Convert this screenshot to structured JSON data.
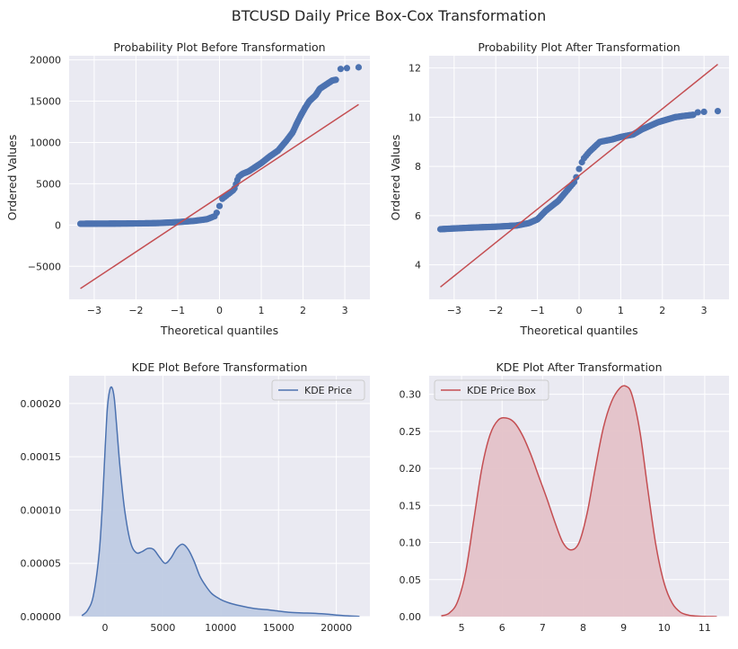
{
  "figure": {
    "title": "BTCUSD Daily Price Box-Cox Transformation"
  },
  "colors": {
    "background": "#eaeaf2",
    "grid": "#ffffff",
    "blue": "#4c72b0",
    "red": "#c44e52",
    "blue_fill": "#bfcbe3",
    "red_fill": "#e4c2c8"
  },
  "chart_data": [
    {
      "id": "prob-before",
      "type": "scatter",
      "title": "Probability Plot Before Transformation",
      "xlabel": "Theoretical quantiles",
      "ylabel": "Ordered Values",
      "xlim": [
        -3.6,
        3.6
      ],
      "ylim": [
        -9000,
        20500
      ],
      "xticks": [
        -3,
        -2,
        -1,
        0,
        1,
        2,
        3
      ],
      "xtick_labels": [
        "−3",
        "−2",
        "−1",
        "0",
        "1",
        "2",
        "3"
      ],
      "yticks": [
        -5000,
        0,
        5000,
        10000,
        15000,
        20000
      ],
      "ytick_labels": [
        "−5000",
        "0",
        "5000",
        "10000",
        "15000",
        "20000"
      ],
      "grid": true,
      "quantile_curve": [
        [
          -3.33,
          150
        ],
        [
          -3.0,
          160
        ],
        [
          -2.5,
          170
        ],
        [
          -2.0,
          190
        ],
        [
          -1.5,
          230
        ],
        [
          -1.0,
          350
        ],
        [
          -0.6,
          500
        ],
        [
          -0.3,
          700
        ],
        [
          -0.1,
          1100
        ],
        [
          0.0,
          2300
        ],
        [
          0.05,
          3100
        ],
        [
          0.2,
          3700
        ],
        [
          0.35,
          4300
        ],
        [
          0.45,
          5800
        ],
        [
          0.55,
          6200
        ],
        [
          0.7,
          6500
        ],
        [
          0.85,
          7000
        ],
        [
          1.0,
          7500
        ],
        [
          1.2,
          8300
        ],
        [
          1.4,
          9000
        ],
        [
          1.6,
          10200
        ],
        [
          1.75,
          11200
        ],
        [
          1.85,
          12300
        ],
        [
          1.95,
          13300
        ],
        [
          2.05,
          14200
        ],
        [
          2.15,
          15000
        ],
        [
          2.3,
          15700
        ],
        [
          2.4,
          16500
        ],
        [
          2.55,
          17000
        ],
        [
          2.7,
          17500
        ],
        [
          2.8,
          17600
        ]
      ],
      "outliers": [
        [
          2.9,
          18900
        ],
        [
          3.05,
          19000
        ],
        [
          3.33,
          19100
        ]
      ],
      "fit_line": {
        "x": [
          -3.33,
          3.33
        ],
        "y": [
          -7700,
          14600
        ]
      }
    },
    {
      "id": "prob-after",
      "type": "scatter",
      "title": "Probability Plot After Transformation",
      "xlabel": "Theoretical quantiles",
      "ylabel": "Ordered Values",
      "xlim": [
        -3.6,
        3.6
      ],
      "ylim": [
        2.6,
        12.5
      ],
      "xticks": [
        -3,
        -2,
        -1,
        0,
        1,
        2,
        3
      ],
      "xtick_labels": [
        "−3",
        "−2",
        "−1",
        "0",
        "1",
        "2",
        "3"
      ],
      "yticks": [
        4,
        6,
        8,
        10,
        12
      ],
      "ytick_labels": [
        "4",
        "6",
        "8",
        "10",
        "12"
      ],
      "grid": true,
      "quantile_curve": [
        [
          -3.33,
          5.45
        ],
        [
          -3.0,
          5.48
        ],
        [
          -2.5,
          5.52
        ],
        [
          -2.0,
          5.55
        ],
        [
          -1.5,
          5.6
        ],
        [
          -1.2,
          5.7
        ],
        [
          -1.0,
          5.85
        ],
        [
          -0.8,
          6.2
        ],
        [
          -0.5,
          6.6
        ],
        [
          -0.3,
          7.0
        ],
        [
          -0.1,
          7.4
        ],
        [
          0.0,
          7.9
        ],
        [
          0.1,
          8.3
        ],
        [
          0.25,
          8.6
        ],
        [
          0.5,
          9.0
        ],
        [
          0.8,
          9.1
        ],
        [
          1.0,
          9.2
        ],
        [
          1.3,
          9.3
        ],
        [
          1.5,
          9.5
        ],
        [
          1.7,
          9.65
        ],
        [
          1.9,
          9.8
        ],
        [
          2.1,
          9.9
        ],
        [
          2.3,
          10.0
        ],
        [
          2.5,
          10.05
        ],
        [
          2.75,
          10.1
        ]
      ],
      "outliers": [
        [
          2.85,
          10.2
        ],
        [
          3.0,
          10.22
        ],
        [
          3.33,
          10.25
        ]
      ],
      "fit_line": {
        "x": [
          -3.33,
          3.33
        ],
        "y": [
          3.1,
          12.15
        ]
      }
    },
    {
      "id": "kde-before",
      "type": "area",
      "title": "KDE Plot Before Transformation",
      "xlim": [
        -3100,
        22900
      ],
      "ylim": [
        0,
        0.000226
      ],
      "xticks": [
        0,
        5000,
        10000,
        15000,
        20000
      ],
      "xtick_labels": [
        "0",
        "5000",
        "10000",
        "15000",
        "20000"
      ],
      "yticks": [
        0,
        5e-05,
        0.0001,
        0.00015,
        0.0002
      ],
      "ytick_labels": [
        "0.00000",
        "0.00005",
        "0.00010",
        "0.00015",
        "0.00020"
      ],
      "grid": true,
      "legend_position": "upper right",
      "series": [
        {
          "name": "KDE Price",
          "x": [
            -2000,
            -1500,
            -1000,
            -500,
            -200,
            0,
            200,
            400,
            600,
            800,
            1000,
            1300,
            1700,
            2200,
            2700,
            3200,
            3700,
            4200,
            4700,
            5200,
            5700,
            6200,
            6700,
            7200,
            7700,
            8200,
            8700,
            9200,
            9700,
            10200,
            11000,
            12000,
            13000,
            14000,
            15000,
            16000,
            17000,
            18000,
            19000,
            20000,
            21000,
            22000
          ],
          "y": [
            1e-06,
            6e-06,
            2e-05,
            6e-05,
            0.00011,
            0.000155,
            0.000195,
            0.000212,
            0.000215,
            0.000205,
            0.00018,
            0.00014,
            0.0001,
            7e-05,
            6e-05,
            6.1e-05,
            6.4e-05,
            6.3e-05,
            5.6e-05,
            5e-05,
            5.5e-05,
            6.4e-05,
            6.8e-05,
            6.3e-05,
            5.2e-05,
            3.8e-05,
            2.9e-05,
            2.2e-05,
            1.8e-05,
            1.5e-05,
            1.2e-05,
            9.5e-06,
            7.5e-06,
            6.5e-06,
            5.2e-06,
            4e-06,
            3.5e-06,
            3.2e-06,
            2.5e-06,
            1.5e-06,
            7e-07,
            2e-07
          ]
        }
      ]
    },
    {
      "id": "kde-after",
      "type": "area",
      "title": "KDE Plot After Transformation",
      "xlim": [
        4.2,
        11.6
      ],
      "ylim": [
        0,
        0.325
      ],
      "xticks": [
        5,
        6,
        7,
        8,
        9,
        10,
        11
      ],
      "xtick_labels": [
        "5",
        "6",
        "7",
        "8",
        "9",
        "10",
        "11"
      ],
      "yticks": [
        0,
        0.05,
        0.1,
        0.15,
        0.2,
        0.25,
        0.3
      ],
      "ytick_labels": [
        "0.00",
        "0.05",
        "0.10",
        "0.15",
        "0.20",
        "0.25",
        "0.30"
      ],
      "grid": true,
      "legend_position": "upper left",
      "series": [
        {
          "name": "KDE Price Box",
          "x": [
            4.5,
            4.7,
            4.9,
            5.1,
            5.3,
            5.5,
            5.7,
            5.9,
            6.1,
            6.3,
            6.5,
            6.7,
            6.9,
            7.1,
            7.3,
            7.5,
            7.7,
            7.9,
            8.1,
            8.3,
            8.5,
            8.7,
            8.9,
            9.05,
            9.2,
            9.4,
            9.6,
            9.8,
            10.0,
            10.2,
            10.4,
            10.6,
            10.8,
            11.0,
            11.2,
            11.3
          ],
          "y": [
            0.001,
            0.005,
            0.02,
            0.06,
            0.13,
            0.2,
            0.245,
            0.265,
            0.268,
            0.262,
            0.245,
            0.22,
            0.19,
            0.16,
            0.128,
            0.1,
            0.09,
            0.1,
            0.14,
            0.2,
            0.255,
            0.29,
            0.308,
            0.311,
            0.3,
            0.25,
            0.17,
            0.095,
            0.045,
            0.018,
            0.006,
            0.002,
            0.0008,
            0.0003,
            0.0001,
            0.0
          ]
        }
      ]
    }
  ]
}
